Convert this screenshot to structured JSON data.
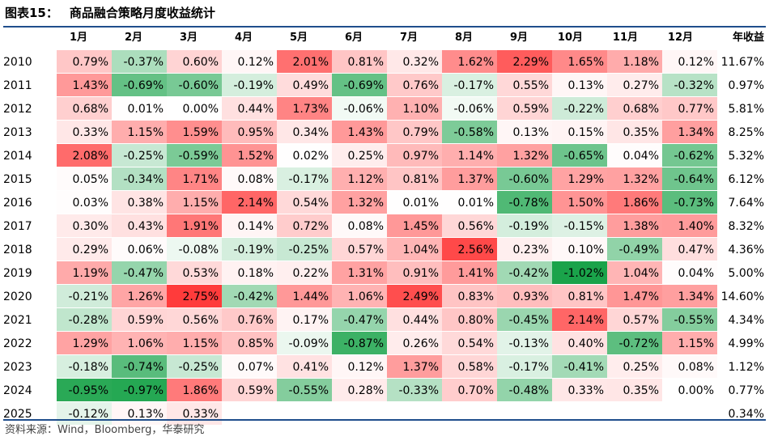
{
  "title": {
    "label": "图表15：",
    "text": "商品融合策略月度收益统计"
  },
  "columns": [
    "1月",
    "2月",
    "3月",
    "4月",
    "5月",
    "6月",
    "7月",
    "8月",
    "9月",
    "10月",
    "11月",
    "12月"
  ],
  "annual_header": "年收益",
  "colors": {
    "positive_max": "#ff3b3b",
    "negative_max": "#1aa34a",
    "neutral": "#ffffff",
    "rule": "#1f4e8c"
  },
  "rows": [
    {
      "year": "2010",
      "values": [
        "0.79%",
        "-0.37%",
        "0.60%",
        "0.12%",
        "2.01%",
        "0.81%",
        "0.32%",
        "1.62%",
        "2.29%",
        "1.65%",
        "1.18%",
        "0.12%"
      ],
      "annual": "11.67%"
    },
    {
      "year": "2011",
      "values": [
        "1.43%",
        "-0.69%",
        "-0.60%",
        "-0.19%",
        "0.49%",
        "-0.69%",
        "0.76%",
        "-0.17%",
        "0.55%",
        "0.13%",
        "0.27%",
        "-0.32%"
      ],
      "annual": "0.97%"
    },
    {
      "year": "2012",
      "values": [
        "0.68%",
        "0.01%",
        "0.00%",
        "0.44%",
        "1.73%",
        "-0.06%",
        "1.10%",
        "-0.06%",
        "0.59%",
        "-0.22%",
        "0.68%",
        "0.77%"
      ],
      "annual": "5.81%"
    },
    {
      "year": "2013",
      "values": [
        "0.33%",
        "1.15%",
        "1.59%",
        "0.95%",
        "0.34%",
        "1.43%",
        "0.79%",
        "-0.58%",
        "0.13%",
        "0.15%",
        "0.35%",
        "1.34%"
      ],
      "annual": "8.25%"
    },
    {
      "year": "2014",
      "values": [
        "2.08%",
        "-0.25%",
        "-0.59%",
        "1.52%",
        "0.02%",
        "0.25%",
        "0.97%",
        "1.14%",
        "1.32%",
        "-0.65%",
        "0.04%",
        "-0.62%"
      ],
      "annual": "5.32%"
    },
    {
      "year": "2015",
      "values": [
        "0.05%",
        "-0.34%",
        "1.71%",
        "0.08%",
        "-0.17%",
        "1.12%",
        "0.81%",
        "1.37%",
        "-0.60%",
        "1.29%",
        "1.32%",
        "-0.64%"
      ],
      "annual": "6.12%"
    },
    {
      "year": "2016",
      "values": [
        "0.03%",
        "0.38%",
        "1.15%",
        "2.14%",
        "0.54%",
        "1.32%",
        "0.01%",
        "0.01%",
        "-0.78%",
        "1.50%",
        "1.86%",
        "-0.73%"
      ],
      "annual": "7.64%"
    },
    {
      "year": "2017",
      "values": [
        "0.30%",
        "0.43%",
        "1.91%",
        "0.14%",
        "0.72%",
        "0.08%",
        "1.45%",
        "0.56%",
        "-0.19%",
        "-0.15%",
        "1.38%",
        "1.40%"
      ],
      "annual": "8.32%"
    },
    {
      "year": "2018",
      "values": [
        "0.29%",
        "0.06%",
        "-0.08%",
        "-0.19%",
        "-0.25%",
        "0.57%",
        "1.04%",
        "2.56%",
        "0.23%",
        "0.10%",
        "-0.49%",
        "0.47%"
      ],
      "annual": "4.36%"
    },
    {
      "year": "2019",
      "values": [
        "1.19%",
        "-0.47%",
        "0.53%",
        "0.18%",
        "0.22%",
        "1.31%",
        "0.91%",
        "1.41%",
        "-0.42%",
        "-1.02%",
        "1.04%",
        "0.04%"
      ],
      "annual": "5.00%"
    },
    {
      "year": "2020",
      "values": [
        "-0.21%",
        "1.26%",
        "2.75%",
        "-0.42%",
        "1.44%",
        "1.06%",
        "2.49%",
        "0.83%",
        "0.93%",
        "0.81%",
        "1.47%",
        "1.34%"
      ],
      "annual": "14.60%"
    },
    {
      "year": "2021",
      "values": [
        "-0.28%",
        "0.59%",
        "0.56%",
        "0.76%",
        "0.17%",
        "-0.47%",
        "0.44%",
        "0.80%",
        "-0.45%",
        "2.14%",
        "0.57%",
        "-0.55%"
      ],
      "annual": "4.34%"
    },
    {
      "year": "2022",
      "values": [
        "1.29%",
        "1.06%",
        "1.15%",
        "0.85%",
        "-0.09%",
        "-0.87%",
        "0.26%",
        "0.54%",
        "-0.13%",
        "0.40%",
        "-0.72%",
        "1.15%"
      ],
      "annual": "4.99%"
    },
    {
      "year": "2023",
      "values": [
        "-0.18%",
        "-0.74%",
        "-0.25%",
        "0.07%",
        "0.41%",
        "0.12%",
        "1.37%",
        "0.58%",
        "-0.17%",
        "-0.41%",
        "0.25%",
        "0.08%"
      ],
      "annual": "1.12%"
    },
    {
      "year": "2024",
      "values": [
        "-0.95%",
        "-0.97%",
        "1.86%",
        "0.59%",
        "-0.55%",
        "0.28%",
        "-0.33%",
        "0.70%",
        "-0.48%",
        "0.33%",
        "0.35%",
        "0.00%"
      ],
      "annual": "0.77%"
    },
    {
      "year": "2025",
      "values": [
        "-0.12%",
        "0.13%",
        "0.33%",
        "",
        "",
        "",
        "",
        "",
        "",
        "",
        "",
        ""
      ],
      "annual": "0.34%"
    }
  ],
  "source": "资料来源：Wind，Bloomberg，华泰研究"
}
